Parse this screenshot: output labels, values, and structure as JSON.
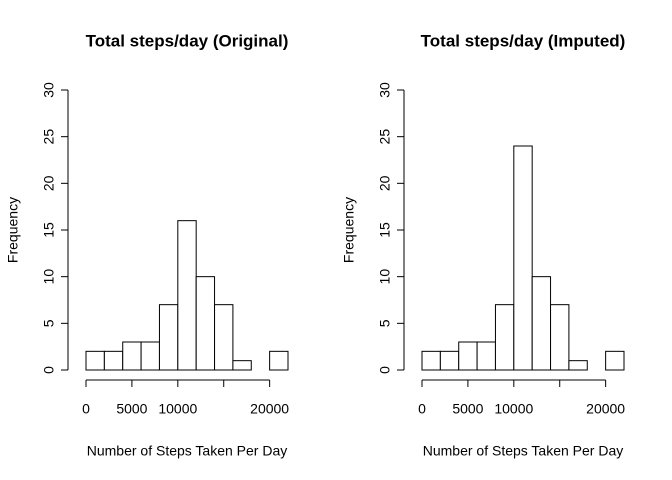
{
  "chart_data": [
    {
      "type": "histogram",
      "title": "Total steps/day (Original)",
      "x_label": "Number of Steps Taken Per Day",
      "y_label": "Frequency",
      "bins": [
        0,
        2000,
        4000,
        6000,
        8000,
        10000,
        12000,
        14000,
        16000,
        18000,
        20000,
        22000
      ],
      "values": [
        2,
        2,
        3,
        3,
        7,
        16,
        10,
        7,
        1,
        0,
        2
      ],
      "xlim": [
        0,
        22000
      ],
      "xticks": [
        0,
        5000,
        10000,
        15000,
        20000
      ],
      "ylim": [
        0,
        30
      ],
      "yticks": [
        0,
        5,
        10,
        15,
        20,
        25,
        30
      ],
      "color": "#ffffff"
    },
    {
      "type": "histogram",
      "title": "Total steps/day (Imputed)",
      "x_label": "Number of Steps Taken Per Day",
      "y_label": "Frequency",
      "bins": [
        0,
        2000,
        4000,
        6000,
        8000,
        10000,
        12000,
        14000,
        16000,
        18000,
        20000,
        22000
      ],
      "values": [
        2,
        2,
        3,
        3,
        7,
        24,
        10,
        7,
        1,
        0,
        2
      ],
      "xlim": [
        0,
        22000
      ],
      "xticks": [
        0,
        5000,
        10000,
        15000,
        20000
      ],
      "ylim": [
        0,
        30
      ],
      "yticks": [
        0,
        5,
        10,
        15,
        20,
        25,
        30
      ],
      "color": "#ffffff"
    }
  ]
}
